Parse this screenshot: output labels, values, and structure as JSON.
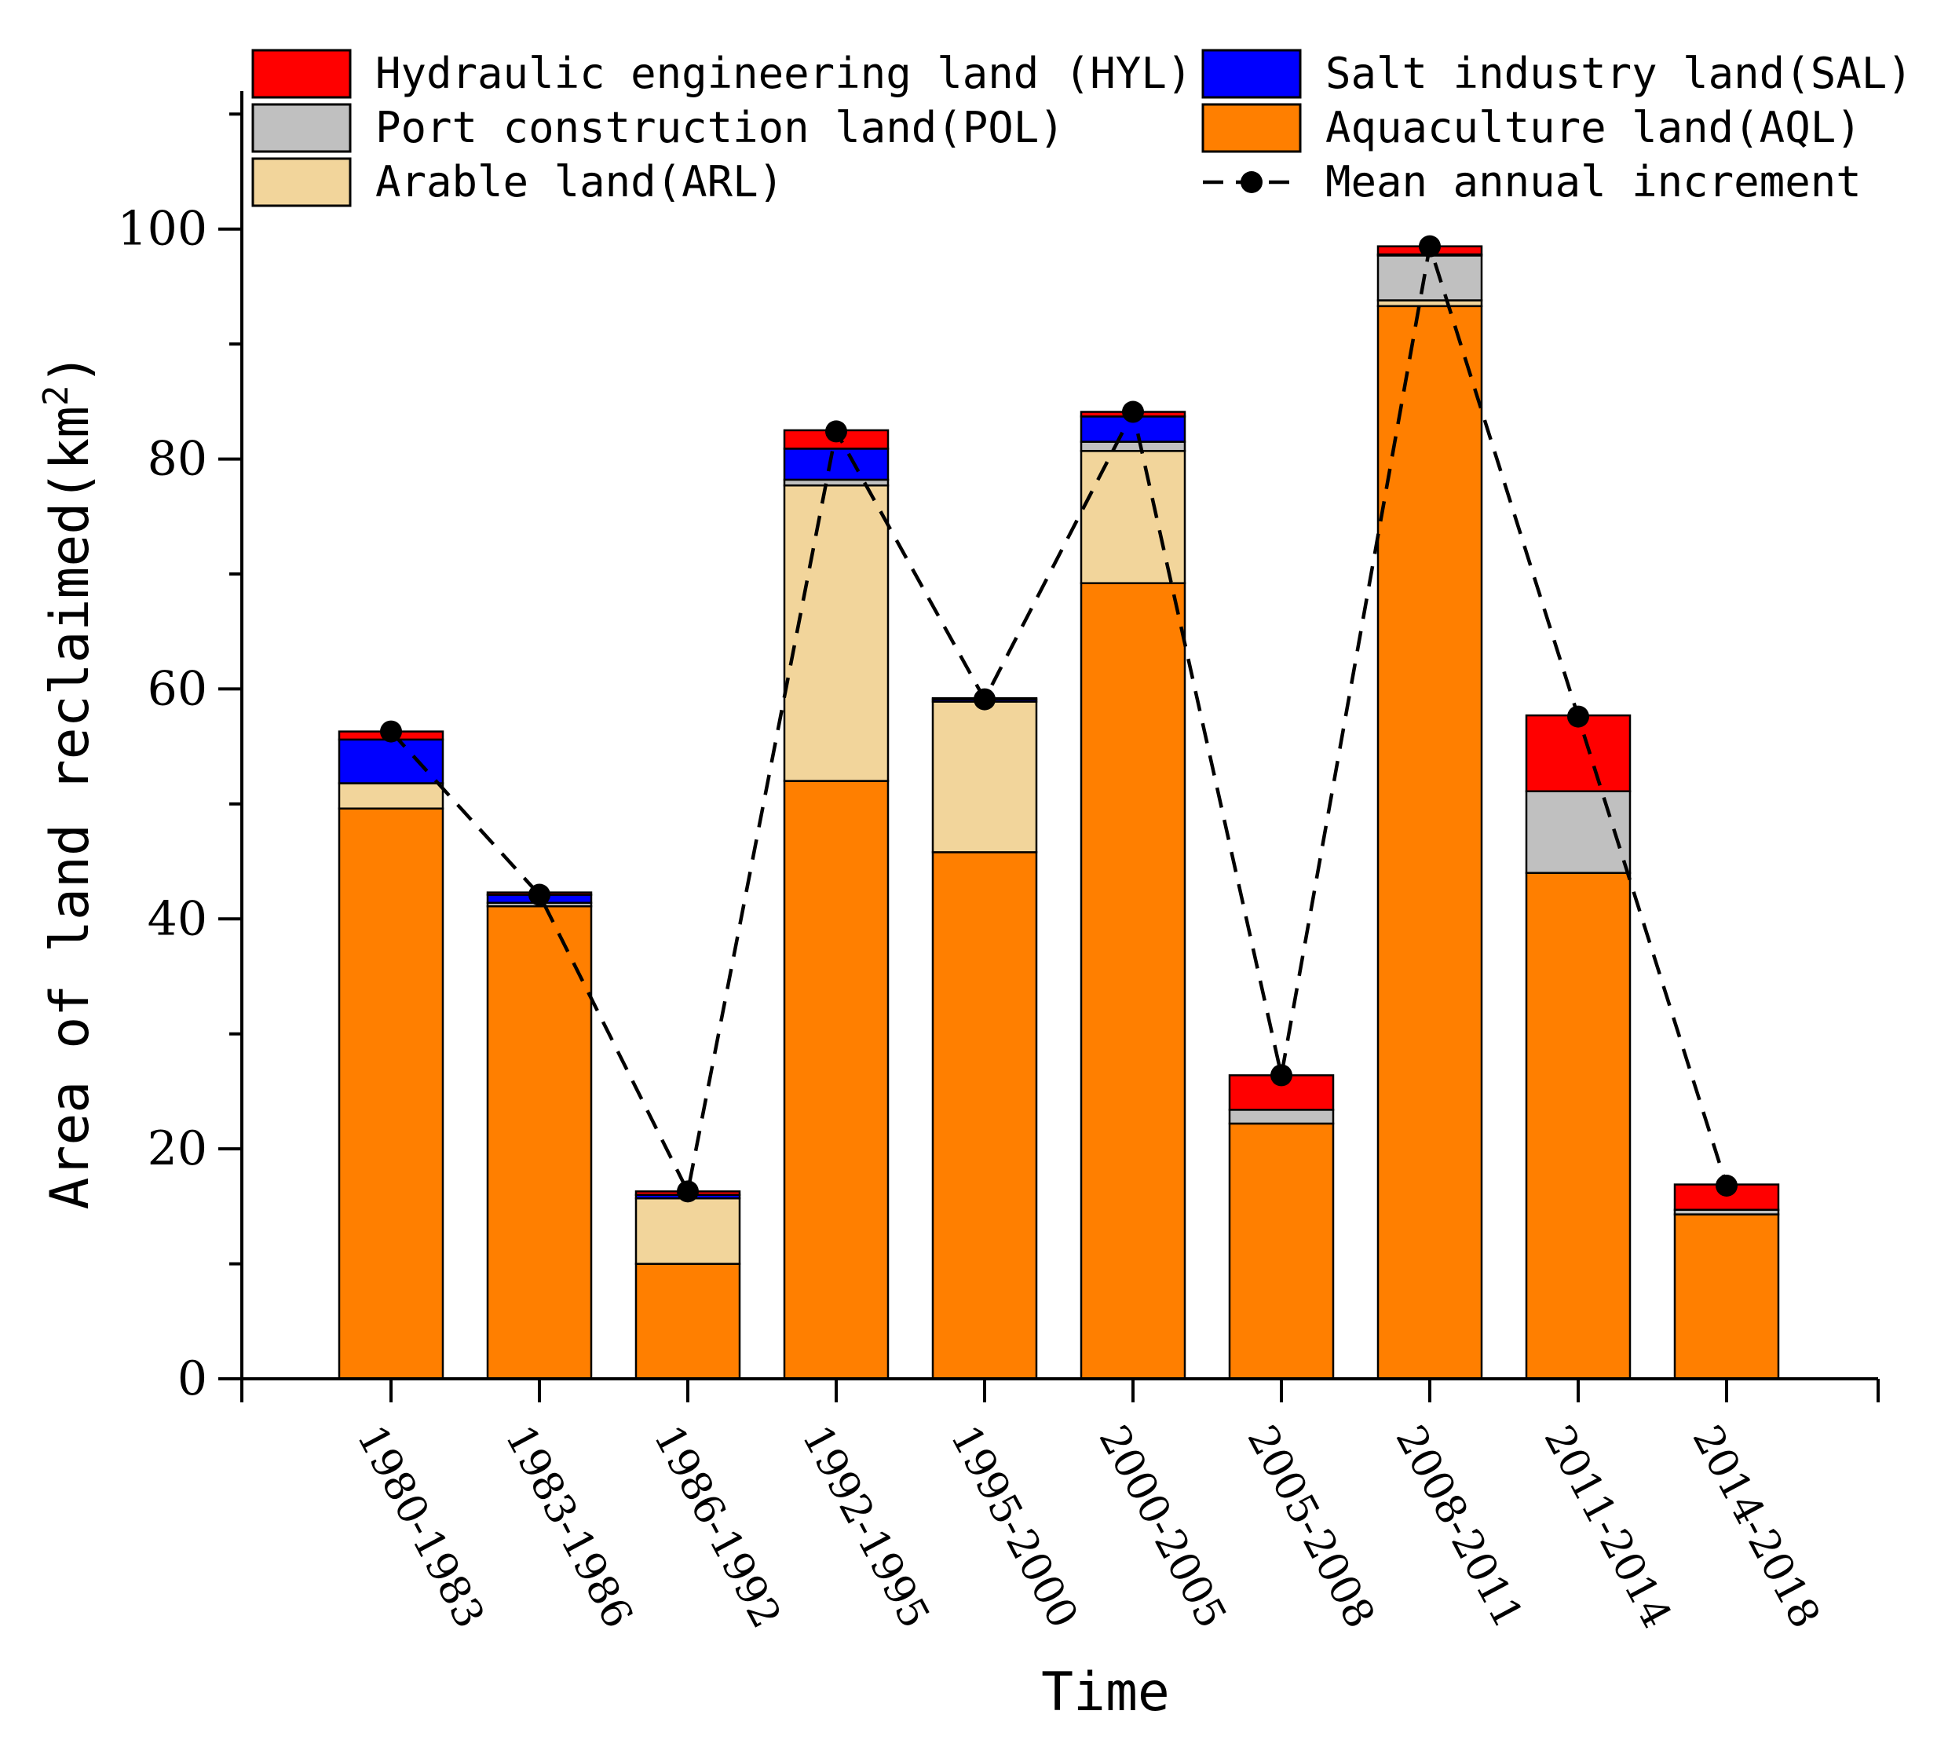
{
  "chart_data": {
    "type": "bar",
    "stacked": true,
    "title": "",
    "xlabel": "Time",
    "ylabel": "Area of land reclaimed(km",
    "ylabel_sup": "2",
    "ylabel_close": ")",
    "ylim": [
      0,
      112
    ],
    "yticks": [
      0,
      20,
      40,
      60,
      80,
      100
    ],
    "yticks_minor": [
      10,
      30,
      50,
      70,
      90,
      110
    ],
    "categories": [
      "1980-1983",
      "1983-1986",
      "1986-1992",
      "1992-1995",
      "1995-2000",
      "2000-2005",
      "2005-2008",
      "2008-2011",
      "2011-2014",
      "2014-2018"
    ],
    "series": [
      {
        "name": "Aquaculture land(AQL)",
        "key": "AQL",
        "color": "#ff7f00",
        "values": [
          49.6,
          41.1,
          10.0,
          52.0,
          45.8,
          69.2,
          22.2,
          93.3,
          44.0,
          14.3
        ]
      },
      {
        "name": "Arable land(ARL)",
        "key": "ARL",
        "color": "#f2d59b",
        "values": [
          2.2,
          0.0,
          5.7,
          25.7,
          13.1,
          11.5,
          0.0,
          0.5,
          0.0,
          0.0
        ]
      },
      {
        "name": "Port construction land(POL)",
        "key": "POL",
        "color": "#c0c0c0",
        "values": [
          0.0,
          0.3,
          0.0,
          0.5,
          0.0,
          0.8,
          1.2,
          3.9,
          7.1,
          0.4
        ]
      },
      {
        "name": "Salt industry land(SAL)",
        "key": "SAL",
        "color": "#0000ff",
        "values": [
          3.8,
          0.7,
          0.3,
          2.7,
          0.2,
          2.2,
          0.0,
          0.1,
          0.0,
          0.0
        ]
      },
      {
        "name": "Hydraulic engineering land (HYL)",
        "key": "HYL",
        "color": "#ff0000",
        "values": [
          0.7,
          0.2,
          0.3,
          1.6,
          0.1,
          0.4,
          3.0,
          0.7,
          6.6,
          2.2
        ]
      }
    ],
    "line_series": {
      "name": "Mean annual increment",
      "color": "#000000",
      "style": "dashed",
      "values": [
        56.3,
        42.1,
        16.3,
        82.4,
        59.1,
        84.1,
        26.4,
        98.5,
        57.6,
        16.8
      ]
    },
    "legend": {
      "placement": "top",
      "items": [
        {
          "label": "Hydraulic engineering land (HYL)",
          "color": "#ff0000",
          "kind": "box"
        },
        {
          "label": "Salt industry land(SAL)",
          "color": "#0000ff",
          "kind": "box"
        },
        {
          "label": "Port construction land(POL)",
          "color": "#c0c0c0",
          "kind": "box"
        },
        {
          "label": "Aquaculture land(AQL)",
          "color": "#ff7f00",
          "kind": "box"
        },
        {
          "label": "Arable land(ARL)",
          "color": "#f2d59b",
          "kind": "box"
        },
        {
          "label": "Mean annual increment",
          "color": "#000000",
          "kind": "line"
        }
      ]
    },
    "grid": false
  }
}
